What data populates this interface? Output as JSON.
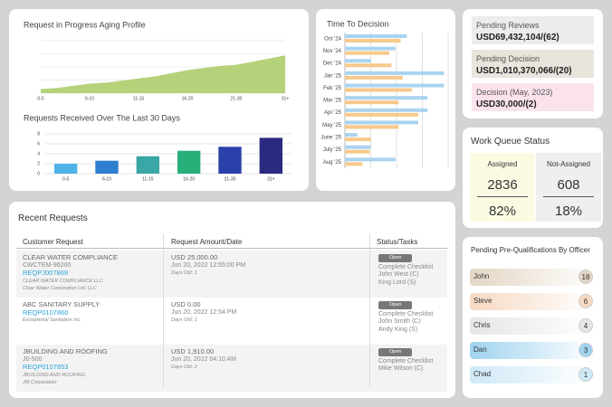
{
  "aging_profile": {
    "type": "area",
    "title": "Request in Progress Aging Profile",
    "categories": [
      "0-5",
      null,
      null,
      "6-10",
      null,
      null,
      "11-15",
      null,
      null,
      "16-20",
      null,
      null,
      "21-30",
      null,
      null,
      "31+"
    ],
    "values": [
      8,
      10,
      14,
      18,
      20,
      24,
      28,
      32,
      38,
      44,
      48,
      52,
      54,
      60,
      66,
      72
    ],
    "color": "#b5d27a",
    "ylim": [
      0,
      100
    ]
  },
  "requests_received": {
    "type": "bar",
    "title": "Requests Received Over The Last 30 Days",
    "categories": [
      "0-5",
      "6-10",
      "11-15",
      "16-20",
      "21-30",
      "31+"
    ],
    "values": [
      2.0,
      2.6,
      3.5,
      4.6,
      5.4,
      7.2
    ],
    "colors": [
      "#4fb3e8",
      "#2f7fd0",
      "#3aa6a6",
      "#27b07a",
      "#2a3fa8",
      "#2a2a80"
    ],
    "ylim": [
      0,
      8
    ],
    "yticks": [
      0,
      2,
      4,
      6,
      8
    ],
    "grid": true
  },
  "time_to_decision": {
    "type": "hbar",
    "title": "Time To Decision",
    "categories": [
      "Oct '24",
      "Nov '24",
      "Dec '24",
      "Jan '25",
      "Feb '25",
      "Mar '25",
      "Apr '25",
      "May '25",
      "June '25",
      "July '25",
      "Aug '25"
    ],
    "series": [
      {
        "color": "#a9d4f0",
        "values": [
          60,
          49,
          25,
          96,
          96,
          80,
          80,
          71,
          12,
          25,
          49
        ]
      },
      {
        "color": "#f7c98a",
        "values": [
          54,
          43,
          45,
          56,
          65,
          52,
          71,
          52,
          25,
          24,
          17
        ]
      }
    ],
    "xlim": [
      0,
      100
    ]
  },
  "pending": [
    {
      "label": "Pending Reviews",
      "value": "USD69,432,104/(62)",
      "color": "#ececec"
    },
    {
      "label": "Pending Decision",
      "value": "USD1,010,370,066/(20)",
      "color": "#e9e4dc"
    },
    {
      "label": "Decision (May, 2023)",
      "value": "USD30,000/(2)",
      "color": "#fbe3ee"
    }
  ],
  "work_queue": {
    "title": "Work Queue Status",
    "columns": [
      {
        "label": "Assigned",
        "count": "2836",
        "percent": "82%",
        "color": "#fbfbe4"
      },
      {
        "label": "Not-Assigned",
        "count": "608",
        "percent": "18%",
        "color": "#efefef"
      }
    ]
  },
  "recent_requests": {
    "title": "Recent Requests",
    "headers": [
      "Customer Request",
      "Request Amount/Date",
      "Status/Tasks"
    ],
    "rows": [
      {
        "customer": {
          "name": "CLEAR WATER COMPLIANCE",
          "code": "CWCTEM-96200",
          "reference": "REQPJ007869",
          "company": "CLEAR WATER COMPLIANCE LLC",
          "parent": "Clear Water Corporation Ltd. LLC"
        },
        "amount": {
          "amount": "USD 25,000.00",
          "date": "Jun 20, 2022 12:55:00 PM",
          "days_old": "Days Old: 1"
        },
        "status": {
          "status": "Open",
          "task": "Complete Checklist",
          "assignees": [
            "John West (C)",
            "King Lord (S)"
          ]
        }
      },
      {
        "customer": {
          "name": "ABC SANITARY SUPPLY",
          "reference": "REQP0107860",
          "company": "Exceptional Sanitation Inc."
        },
        "amount": {
          "amount": "USD 0.00",
          "date": "Jun 20, 2022 12:54 PM",
          "days_old": "Days Old: 1"
        },
        "status": {
          "status": "Open",
          "task": "Complete Checklist",
          "assignees": [
            "John Smith (C)",
            "Andy King (S)"
          ]
        }
      },
      {
        "customer": {
          "name": "JBUILDING AND ROOFING",
          "code": "J0-500",
          "reference": "REQP0107853",
          "company": "JBUILDING AND ROOFING",
          "parent": "JM Corporation"
        },
        "amount": {
          "amount": "USD 1,910.00",
          "date": "Jun 20, 2022 04:10 AM",
          "days_old": "Days Old: 2"
        },
        "status": {
          "status": "Open",
          "task": "Complete Checklist",
          "assignees": [
            "Mike Wilson (C)"
          ]
        }
      }
    ]
  },
  "prequal": {
    "title": "Pending Pre-Qualifications By Officer",
    "officers": [
      {
        "name": "John",
        "count": "18",
        "color": "#e3d6c4"
      },
      {
        "name": "Steve",
        "count": "6",
        "color": "#f6d9c2"
      },
      {
        "name": "Chris",
        "count": "4",
        "color": "#e6e6e6"
      },
      {
        "name": "Dan",
        "count": "3",
        "color": "#9fd3ef"
      },
      {
        "name": "Chad",
        "count": "1",
        "color": "#cfe9f7"
      }
    ]
  }
}
